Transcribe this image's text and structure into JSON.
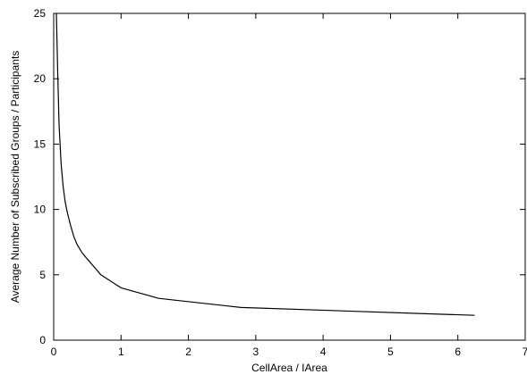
{
  "chart_data": {
    "type": "line",
    "title": "",
    "xlabel": "CellArea / IArea",
    "ylabel": "Average Number of Subscribed Groups / Participants",
    "xlim": [
      0,
      7
    ],
    "ylim": [
      0,
      25
    ],
    "xticks": [
      0,
      1,
      2,
      3,
      4,
      5,
      6,
      7
    ],
    "yticks": [
      0,
      5,
      10,
      15,
      20,
      25
    ],
    "grid": false,
    "legend": "none",
    "series": [
      {
        "color": "#000000",
        "x": [
          0.04,
          0.06,
          0.08,
          0.11,
          0.14,
          0.17,
          0.2,
          0.25,
          0.3,
          0.35,
          0.42,
          0.5,
          0.6,
          0.7,
          1.0,
          1.56,
          2.78,
          6.25
        ],
        "y": [
          25,
          20.5,
          16.5,
          13.5,
          11.8,
          10.6,
          9.8,
          8.8,
          7.9,
          7.3,
          6.7,
          6.2,
          5.6,
          5.0,
          4.0,
          3.2,
          2.5,
          1.9
        ]
      }
    ]
  }
}
